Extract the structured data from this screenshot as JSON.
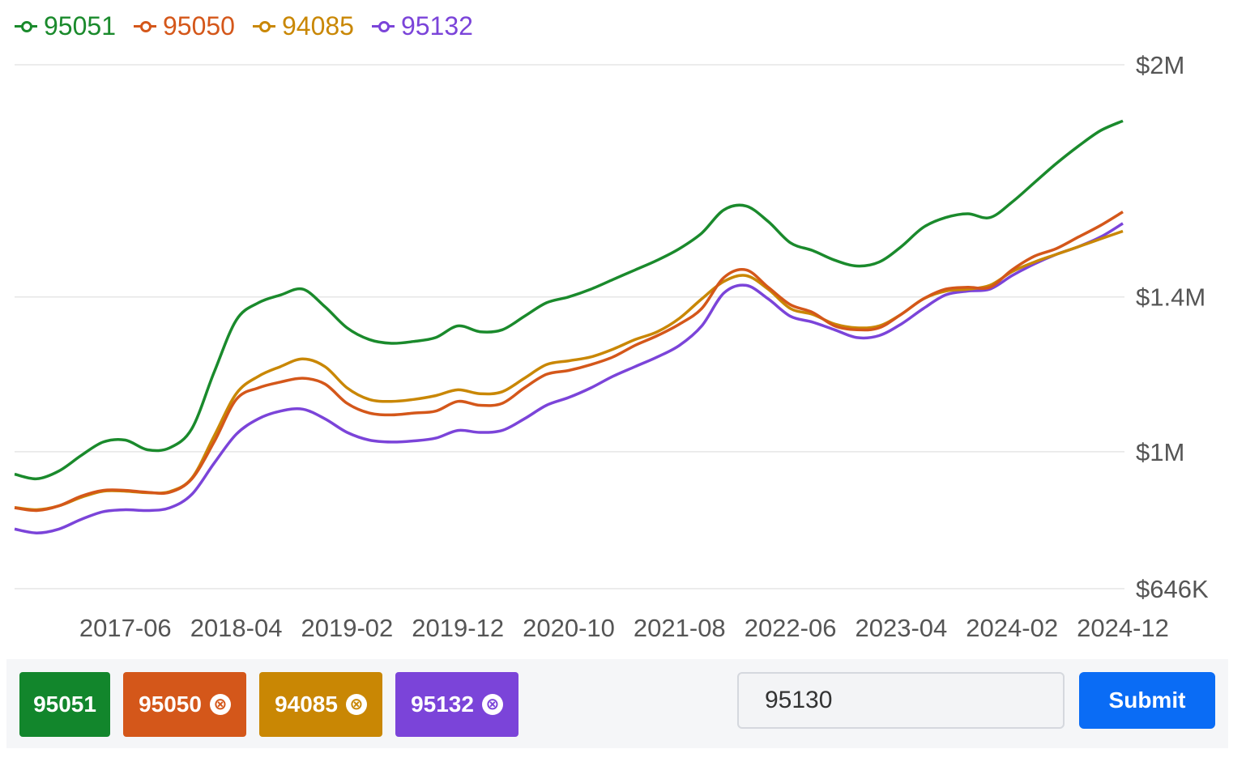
{
  "chart_data": {
    "type": "line",
    "x": [
      "2016-08",
      "2016-10",
      "2016-12",
      "2017-02",
      "2017-04",
      "2017-06",
      "2017-08",
      "2017-10",
      "2017-12",
      "2018-02",
      "2018-04",
      "2018-06",
      "2018-08",
      "2018-10",
      "2018-12",
      "2019-02",
      "2019-04",
      "2019-06",
      "2019-08",
      "2019-10",
      "2019-12",
      "2020-02",
      "2020-04",
      "2020-06",
      "2020-08",
      "2020-10",
      "2020-12",
      "2021-02",
      "2021-04",
      "2021-06",
      "2021-08",
      "2021-10",
      "2021-12",
      "2022-02",
      "2022-04",
      "2022-06",
      "2022-08",
      "2022-10",
      "2022-12",
      "2023-02",
      "2023-04",
      "2023-06",
      "2023-08",
      "2023-10",
      "2023-12",
      "2024-02",
      "2024-04",
      "2024-06",
      "2024-08",
      "2024-10",
      "2024-12"
    ],
    "series": [
      {
        "name": "95051",
        "color": "#1a8a2c",
        "values": [
          942,
          930,
          950,
          990,
          1025,
          1030,
          1005,
          1010,
          1060,
          1205,
          1340,
          1385,
          1405,
          1420,
          1375,
          1320,
          1290,
          1280,
          1285,
          1295,
          1325,
          1310,
          1315,
          1350,
          1385,
          1400,
          1420,
          1445,
          1470,
          1495,
          1525,
          1565,
          1625,
          1635,
          1595,
          1540,
          1520,
          1495,
          1480,
          1490,
          1530,
          1580,
          1605,
          1615,
          1605,
          1645,
          1695,
          1745,
          1790,
          1830,
          1855
        ]
      },
      {
        "name": "95050",
        "color": "#d4571a",
        "values": [
          855,
          848,
          860,
          885,
          900,
          900,
          895,
          895,
          930,
          1025,
          1135,
          1165,
          1180,
          1190,
          1175,
          1125,
          1100,
          1095,
          1100,
          1105,
          1130,
          1120,
          1125,
          1165,
          1200,
          1210,
          1225,
          1245,
          1275,
          1300,
          1330,
          1370,
          1450,
          1470,
          1425,
          1380,
          1360,
          1325,
          1315,
          1320,
          1355,
          1395,
          1420,
          1425,
          1425,
          1470,
          1505,
          1525,
          1555,
          1585,
          1620
        ]
      },
      {
        "name": "94085",
        "color": "#c98704",
        "values": [
          856,
          850,
          860,
          882,
          898,
          898,
          894,
          897,
          932,
          1040,
          1150,
          1195,
          1220,
          1240,
          1220,
          1165,
          1135,
          1130,
          1135,
          1145,
          1160,
          1150,
          1155,
          1190,
          1225,
          1235,
          1245,
          1265,
          1290,
          1310,
          1345,
          1395,
          1440,
          1455,
          1420,
          1370,
          1355,
          1330,
          1320,
          1325,
          1355,
          1395,
          1415,
          1420,
          1430,
          1465,
          1490,
          1510,
          1530,
          1550,
          1570
        ]
      },
      {
        "name": "95132",
        "color": "#7b44d9",
        "values": [
          800,
          790,
          800,
          825,
          845,
          850,
          848,
          855,
          890,
          970,
          1045,
          1085,
          1105,
          1110,
          1085,
          1050,
          1030,
          1025,
          1028,
          1035,
          1055,
          1050,
          1055,
          1085,
          1120,
          1140,
          1165,
          1195,
          1220,
          1245,
          1275,
          1325,
          1410,
          1430,
          1395,
          1350,
          1335,
          1315,
          1295,
          1300,
          1330,
          1370,
          1405,
          1415,
          1420,
          1455,
          1485,
          1510,
          1530,
          1555,
          1590
        ]
      }
    ],
    "xticks": [
      "2017-06",
      "2018-04",
      "2019-02",
      "2019-12",
      "2020-10",
      "2021-08",
      "2022-06",
      "2023-04",
      "2024-02",
      "2024-12"
    ],
    "yticks": [
      646,
      1000,
      1400,
      2000
    ],
    "ytick_labels": [
      "$646K",
      "$1M",
      "$1.4M",
      "$2M"
    ],
    "ylim": [
      646,
      2000
    ],
    "y_axis_position": "right",
    "grid": true,
    "legend_position": "top-left"
  },
  "legend": [
    {
      "label": "95051",
      "color": "#1a8a2c"
    },
    {
      "label": "95050",
      "color": "#d4571a"
    },
    {
      "label": "94085",
      "color": "#c98704"
    },
    {
      "label": "95132",
      "color": "#7b44d9"
    }
  ],
  "chips": [
    {
      "label": "95051",
      "color": "#12862c",
      "removable": false
    },
    {
      "label": "95050",
      "color": "#d4571a",
      "removable": true,
      "remove_icon": "⊗"
    },
    {
      "label": "94085",
      "color": "#c98704",
      "removable": true,
      "remove_icon": "⊗"
    },
    {
      "label": "95132",
      "color": "#7b44d9",
      "removable": true,
      "remove_icon": "⊗"
    }
  ],
  "zip_input": {
    "value": "95130"
  },
  "submit_label": "Submit"
}
